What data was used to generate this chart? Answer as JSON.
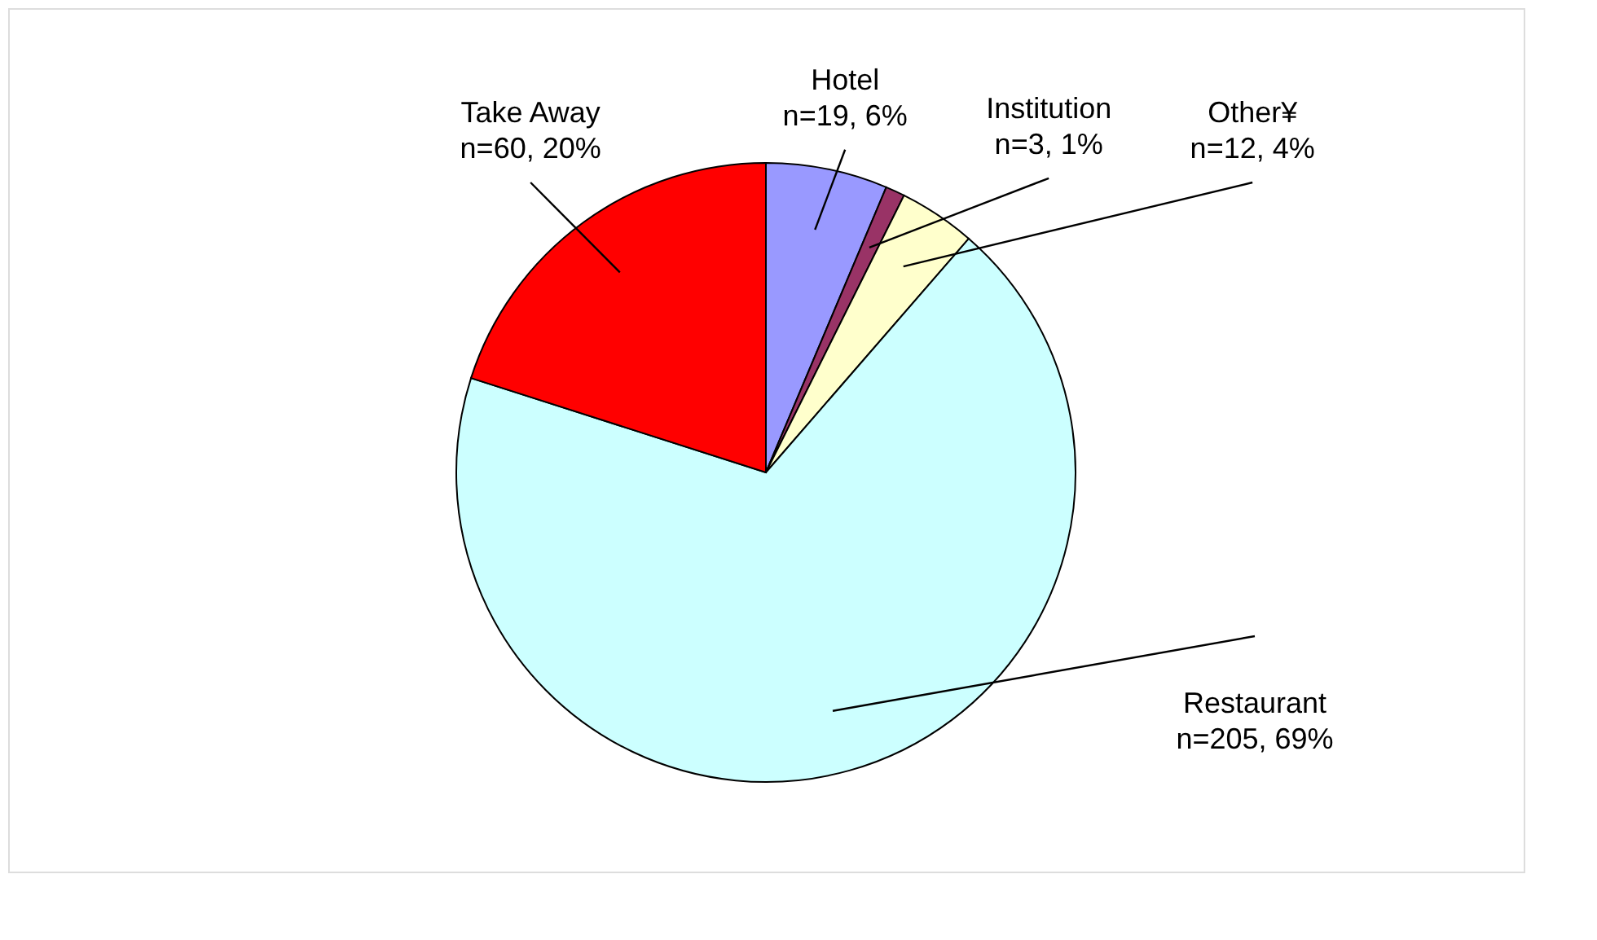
{
  "chart_data": {
    "type": "pie",
    "categories": [
      "Hotel",
      "Institution",
      "Other¥",
      "Restaurant",
      "Take Away"
    ],
    "values": [
      19,
      3,
      12,
      205,
      60
    ],
    "value_labels": [
      "n=19, 6%",
      "n=3, 1%",
      "n=12, 4%",
      "n=205, 69%",
      "n=60, 20%"
    ],
    "colors": [
      "#9999ff",
      "#993366",
      "#ffffcc",
      "#ccffff",
      "#ff0000"
    ],
    "legend": false
  }
}
